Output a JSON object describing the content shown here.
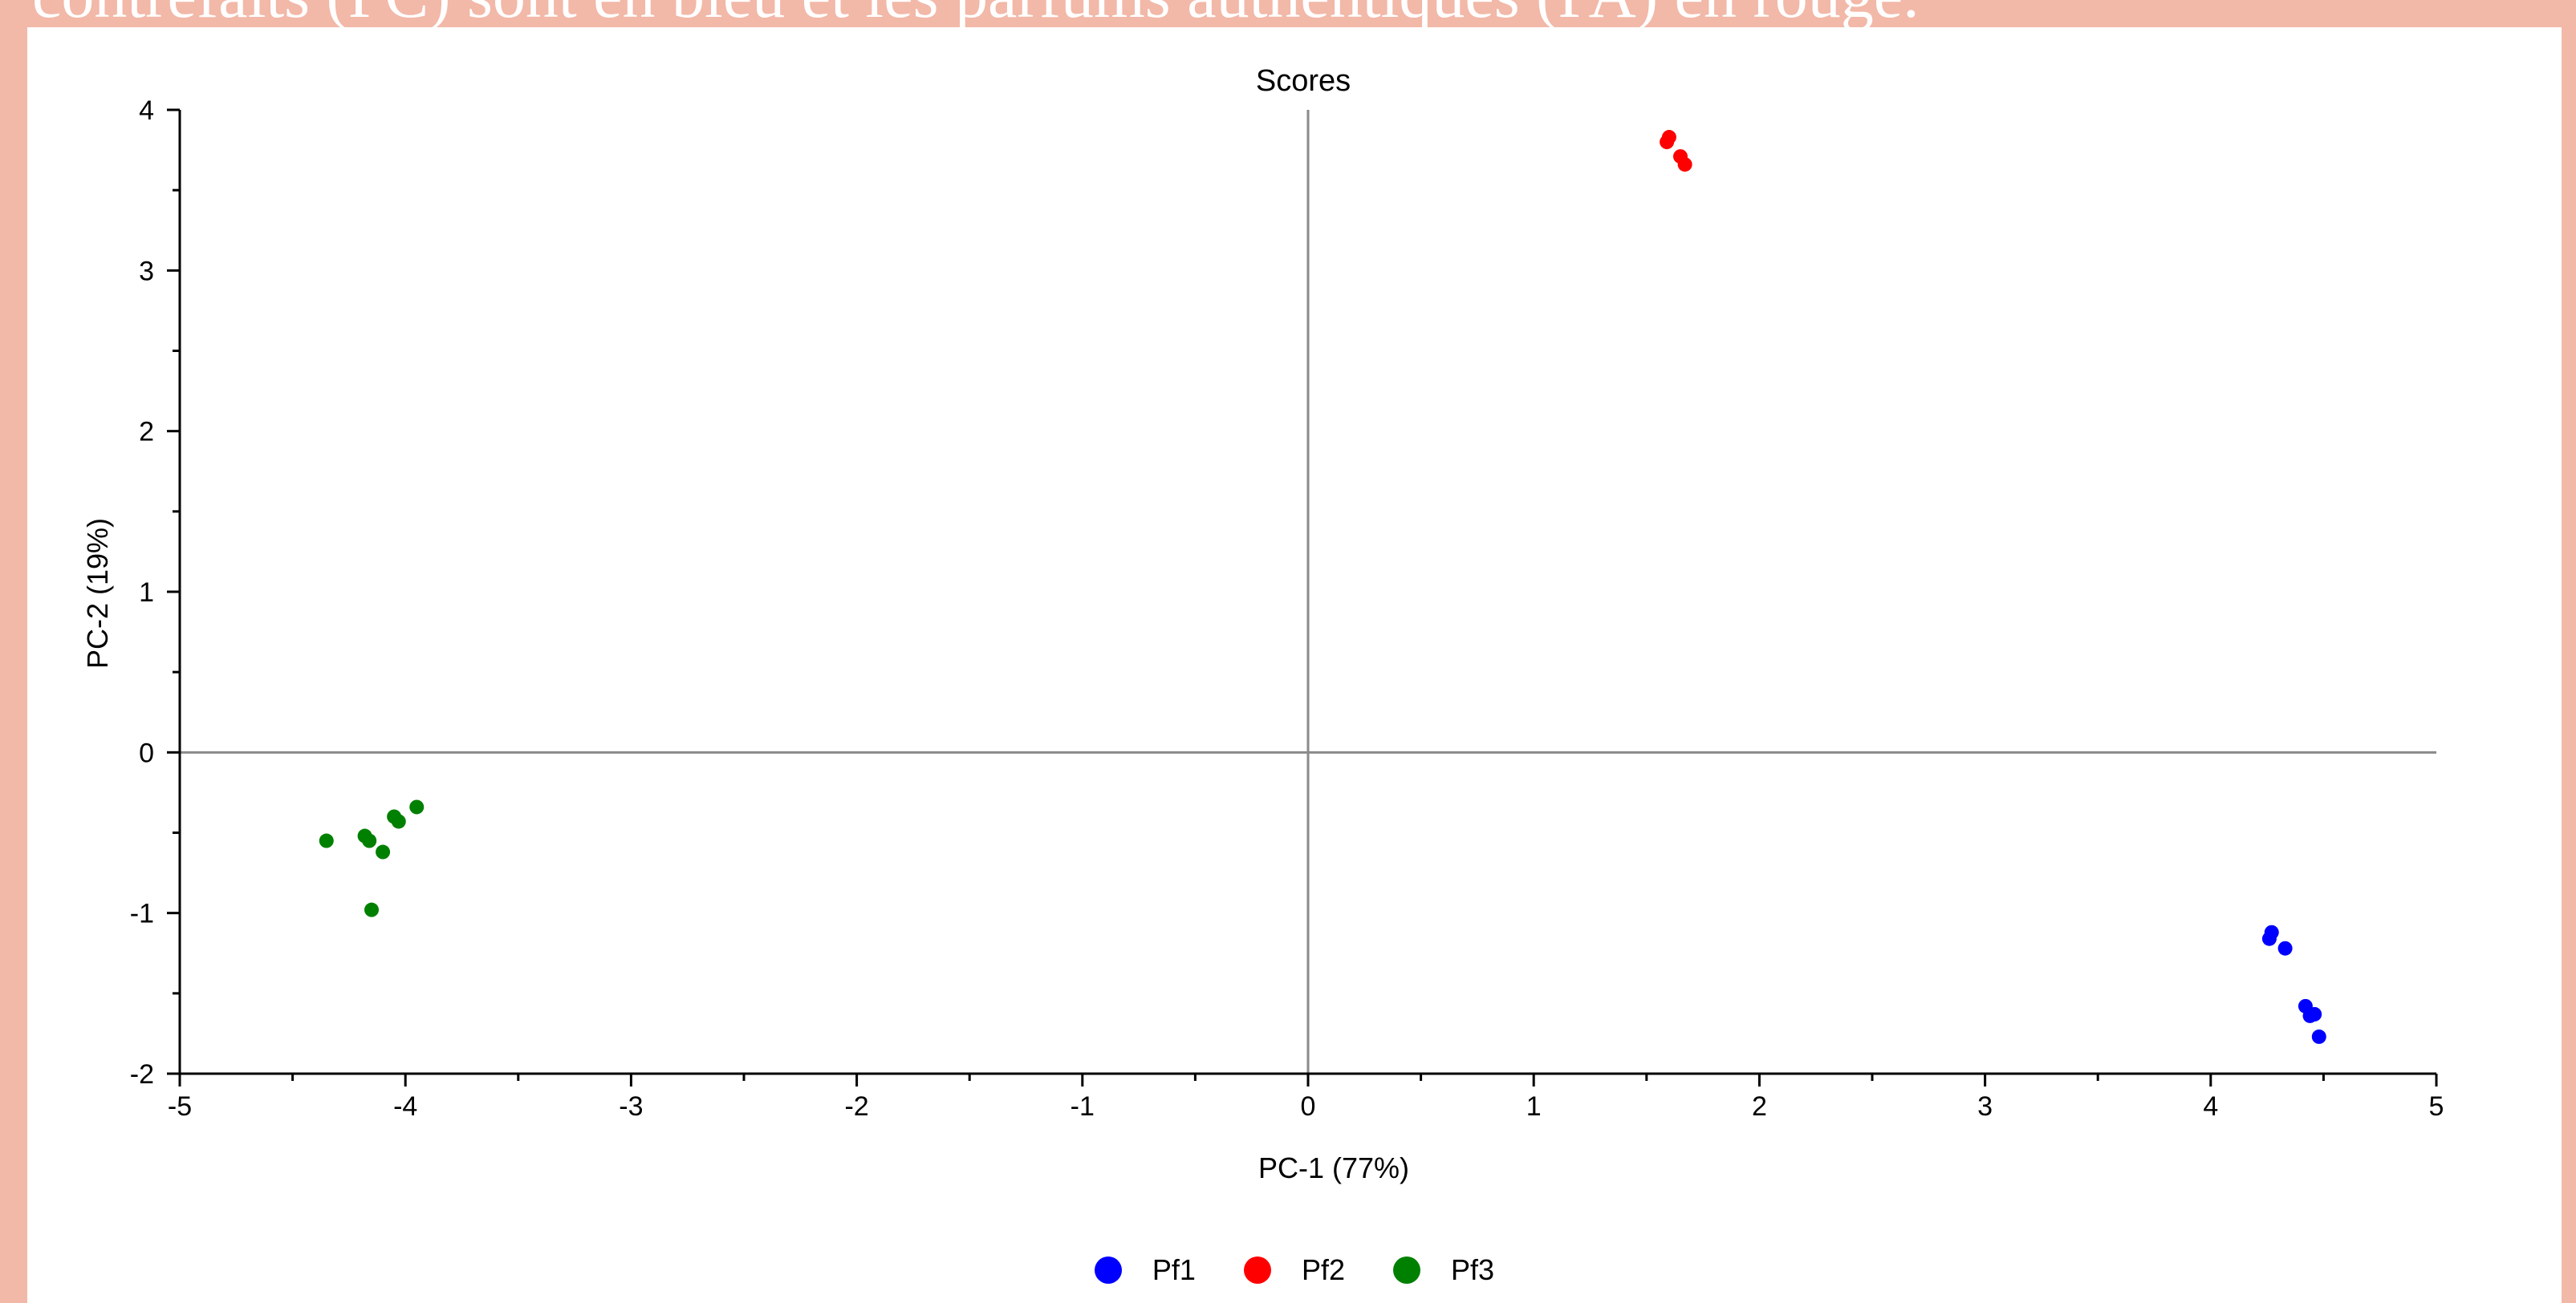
{
  "caption": "contrefaits (PC) sont en bleu et les parfums authentiques (PA) en rouge.",
  "chart_data": {
    "type": "scatter",
    "title": "Scores",
    "xlabel": "PC-1 (77%)",
    "ylabel": "PC-2 (19%)",
    "xlim": [
      -5,
      5
    ],
    "ylim": [
      -2,
      4
    ],
    "xticks": [
      -5,
      -4,
      -3,
      -2,
      -1,
      0,
      1,
      2,
      3,
      4,
      5
    ],
    "yticks": [
      -2,
      -1,
      0,
      1,
      2,
      3,
      4
    ],
    "zero_lines": true,
    "grid": false,
    "legend_position": "bottom-center",
    "series": [
      {
        "name": "Pf1",
        "color": "#0000ff",
        "points": [
          [
            4.27,
            -1.12
          ],
          [
            4.26,
            -1.16
          ],
          [
            4.33,
            -1.22
          ],
          [
            4.42,
            -1.58
          ],
          [
            4.44,
            -1.64
          ],
          [
            4.46,
            -1.63
          ],
          [
            4.48,
            -1.77
          ]
        ]
      },
      {
        "name": "Pf2",
        "color": "#ff0000",
        "points": [
          [
            1.6,
            3.83
          ],
          [
            1.59,
            3.8
          ],
          [
            1.65,
            3.71
          ],
          [
            1.67,
            3.66
          ]
        ]
      },
      {
        "name": "Pf3",
        "color": "#008000",
        "points": [
          [
            -4.35,
            -0.55
          ],
          [
            -4.18,
            -0.52
          ],
          [
            -4.16,
            -0.55
          ],
          [
            -4.1,
            -0.62
          ],
          [
            -4.05,
            -0.4
          ],
          [
            -4.03,
            -0.43
          ],
          [
            -3.95,
            -0.34
          ],
          [
            -4.15,
            -0.98
          ]
        ]
      }
    ]
  }
}
